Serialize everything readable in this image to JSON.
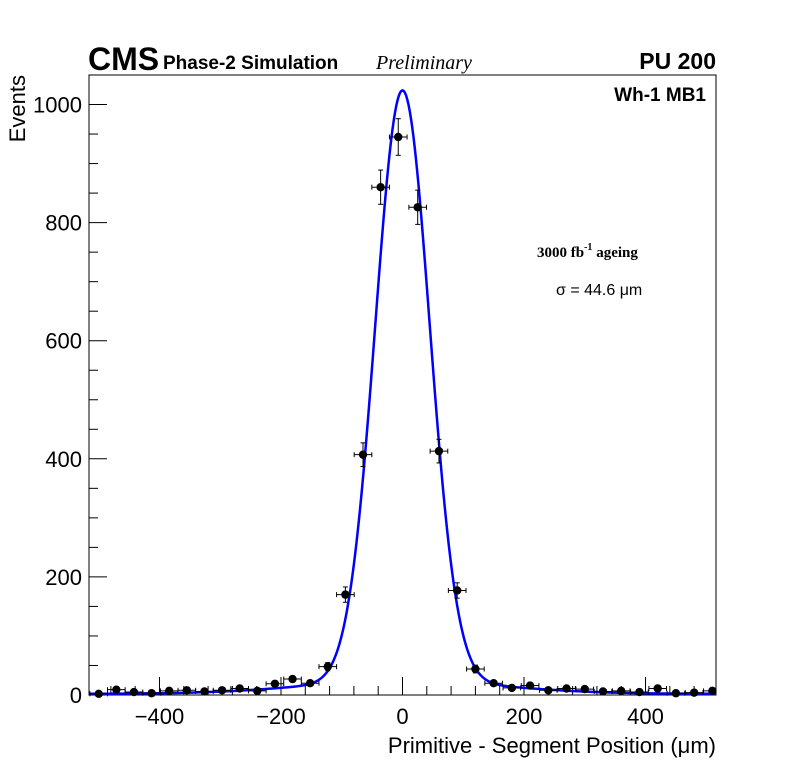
{
  "header": {
    "experiment": "CMS",
    "subtitle": "Phase-2 Simulation",
    "status": "Preliminary",
    "pileup": "PU 200"
  },
  "annotations": {
    "chamber": "Wh-1 MB1",
    "ageing_prefix": "3000 fb",
    "ageing_exp": "-1",
    "ageing_suffix": " ageing",
    "sigma": "σ = 44.6 μm"
  },
  "colors": {
    "fit_line": "#0000ff",
    "markers": "#000000"
  },
  "chart_data": {
    "type": "scatter",
    "title": "",
    "xlabel": "Primitive - Segment Position (μm)",
    "ylabel": "Events",
    "xlim": [
      -516,
      516
    ],
    "ylim": [
      0,
      1050
    ],
    "xticks": [
      -400,
      -200,
      0,
      200,
      400
    ],
    "xtick_labels": [
      "−400",
      "−200",
      "0",
      "200",
      "400"
    ],
    "yticks": [
      0,
      200,
      400,
      600,
      800,
      1000
    ],
    "ytick_labels": [
      "0",
      "200",
      "400",
      "600",
      "800",
      "1000"
    ],
    "bin_half_width": 14.5,
    "series": [
      {
        "name": "data",
        "x": [
          -500,
          -471,
          -442,
          -413,
          -384,
          -355,
          -326,
          -297,
          -268,
          -239,
          -210,
          -181,
          -152,
          -123,
          -94,
          -65,
          -36,
          -7,
          25,
          60,
          90,
          120,
          150,
          180,
          210,
          240,
          270,
          300,
          330,
          360,
          390,
          420,
          450,
          480,
          510
        ],
        "y": [
          2,
          9,
          5,
          3,
          7,
          8,
          6,
          8,
          11,
          7,
          19,
          27,
          20,
          48,
          170,
          407,
          860,
          945,
          826,
          413,
          177,
          44,
          20,
          12,
          16,
          8,
          11,
          10,
          6,
          7,
          5,
          11,
          3,
          4,
          7
        ],
        "yerr": [
          1.5,
          3,
          2.2,
          1.7,
          2.6,
          2.8,
          2.4,
          2.8,
          3.3,
          2.6,
          4.4,
          5.2,
          4.5,
          6.9,
          13,
          20,
          29,
          31,
          29,
          20,
          13,
          6.6,
          4.5,
          3.5,
          4,
          2.8,
          3.3,
          3.2,
          2.4,
          2.6,
          2.2,
          3.3,
          1.7,
          2,
          2.6
        ]
      },
      {
        "name": "fit",
        "amplitude": 1000,
        "mean": 0,
        "sigma": 44.6,
        "tail_amplitude": 22,
        "tail_sigma": 160,
        "tail_floor": 2
      }
    ]
  }
}
